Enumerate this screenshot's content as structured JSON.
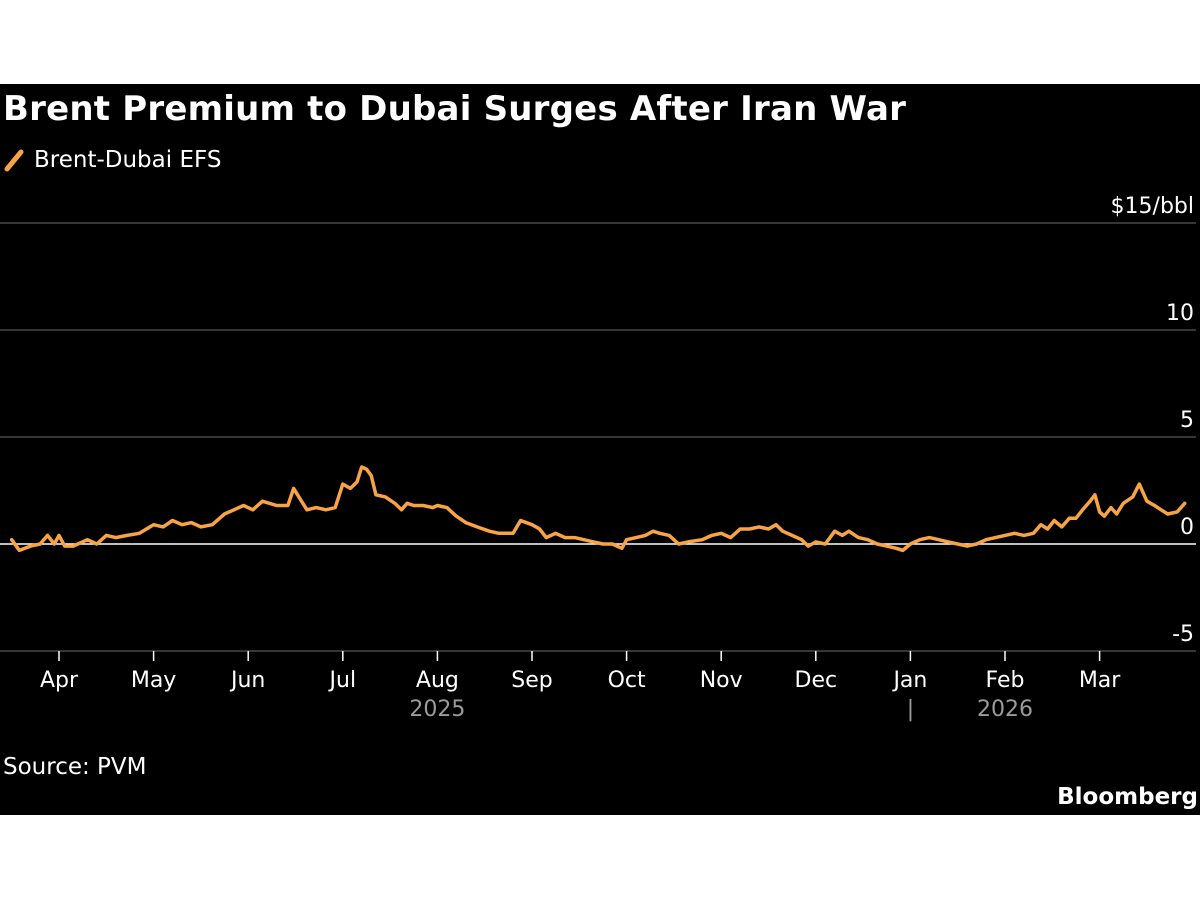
{
  "chart_data": {
    "type": "line",
    "title": "Brent Premium to Dubai Surges After Iran War",
    "legend": {
      "entries": [
        "Brent-Dubai EFS"
      ],
      "position": "top-left"
    },
    "y_axis": {
      "unit_label": "$15/bbl",
      "ticks": [
        {
          "value": 15,
          "label": "$15/bbl"
        },
        {
          "value": 10,
          "label": "10"
        },
        {
          "value": 5,
          "label": "5"
        },
        {
          "value": 0,
          "label": "0"
        },
        {
          "value": -5,
          "label": "-5"
        }
      ],
      "ylim": [
        -5,
        15
      ],
      "grid": true
    },
    "x_axis": {
      "months": [
        "Apr",
        "May",
        "Jun",
        "Jul",
        "Aug",
        "Sep",
        "Oct",
        "Nov",
        "Dec",
        "Jan",
        "Feb",
        "Mar"
      ],
      "years": [
        {
          "label": "2025",
          "center_month_index": 4
        },
        {
          "label": "2026",
          "center_month_index": 10
        }
      ],
      "year_divider_month_index": 9,
      "year_divider_label": "|",
      "xlim": [
        -0.5,
        11.85
      ]
    },
    "series": [
      {
        "name": "Brent-Dubai EFS",
        "color": "#f8a445",
        "points": [
          [
            -0.5,
            0.2
          ],
          [
            -0.42,
            -0.3
          ],
          [
            -0.3,
            -0.1
          ],
          [
            -0.2,
            0.0
          ],
          [
            -0.12,
            0.4
          ],
          [
            -0.05,
            0.0
          ],
          [
            0.0,
            0.4
          ],
          [
            0.06,
            -0.1
          ],
          [
            0.15,
            -0.1
          ],
          [
            0.3,
            0.2
          ],
          [
            0.4,
            0.0
          ],
          [
            0.5,
            0.4
          ],
          [
            0.6,
            0.3
          ],
          [
            0.72,
            0.4
          ],
          [
            0.85,
            0.5
          ],
          [
            1.0,
            0.9
          ],
          [
            1.1,
            0.8
          ],
          [
            1.2,
            1.1
          ],
          [
            1.3,
            0.9
          ],
          [
            1.4,
            1.0
          ],
          [
            1.5,
            0.8
          ],
          [
            1.62,
            0.9
          ],
          [
            1.75,
            1.4
          ],
          [
            1.85,
            1.6
          ],
          [
            1.95,
            1.8
          ],
          [
            2.05,
            1.6
          ],
          [
            2.15,
            2.0
          ],
          [
            2.3,
            1.8
          ],
          [
            2.42,
            1.8
          ],
          [
            2.48,
            2.6
          ],
          [
            2.55,
            2.1
          ],
          [
            2.62,
            1.6
          ],
          [
            2.72,
            1.7
          ],
          [
            2.82,
            1.6
          ],
          [
            2.92,
            1.7
          ],
          [
            3.0,
            2.8
          ],
          [
            3.08,
            2.6
          ],
          [
            3.15,
            2.9
          ],
          [
            3.2,
            3.6
          ],
          [
            3.25,
            3.5
          ],
          [
            3.3,
            3.2
          ],
          [
            3.35,
            2.3
          ],
          [
            3.45,
            2.2
          ],
          [
            3.55,
            1.9
          ],
          [
            3.62,
            1.6
          ],
          [
            3.68,
            1.9
          ],
          [
            3.75,
            1.8
          ],
          [
            3.85,
            1.8
          ],
          [
            3.95,
            1.7
          ],
          [
            4.0,
            1.8
          ],
          [
            4.1,
            1.7
          ],
          [
            4.2,
            1.3
          ],
          [
            4.3,
            1.0
          ],
          [
            4.42,
            0.8
          ],
          [
            4.55,
            0.6
          ],
          [
            4.65,
            0.5
          ],
          [
            4.72,
            0.5
          ],
          [
            4.8,
            0.5
          ],
          [
            4.88,
            1.1
          ],
          [
            5.0,
            0.9
          ],
          [
            5.08,
            0.7
          ],
          [
            5.15,
            0.3
          ],
          [
            5.25,
            0.5
          ],
          [
            5.35,
            0.3
          ],
          [
            5.45,
            0.3
          ],
          [
            5.55,
            0.2
          ],
          [
            5.65,
            0.1
          ],
          [
            5.75,
            0.0
          ],
          [
            5.85,
            0.0
          ],
          [
            5.95,
            -0.2
          ],
          [
            6.0,
            0.2
          ],
          [
            6.1,
            0.3
          ],
          [
            6.2,
            0.4
          ],
          [
            6.28,
            0.6
          ],
          [
            6.35,
            0.5
          ],
          [
            6.45,
            0.4
          ],
          [
            6.55,
            0.0
          ],
          [
            6.65,
            0.1
          ],
          [
            6.8,
            0.2
          ],
          [
            6.9,
            0.4
          ],
          [
            7.0,
            0.5
          ],
          [
            7.1,
            0.3
          ],
          [
            7.2,
            0.7
          ],
          [
            7.3,
            0.7
          ],
          [
            7.4,
            0.8
          ],
          [
            7.5,
            0.7
          ],
          [
            7.58,
            0.9
          ],
          [
            7.65,
            0.6
          ],
          [
            7.75,
            0.4
          ],
          [
            7.85,
            0.2
          ],
          [
            7.92,
            -0.1
          ],
          [
            8.0,
            0.1
          ],
          [
            8.1,
            0.0
          ],
          [
            8.2,
            0.6
          ],
          [
            8.28,
            0.4
          ],
          [
            8.35,
            0.6
          ],
          [
            8.45,
            0.3
          ],
          [
            8.55,
            0.2
          ],
          [
            8.65,
            0.0
          ],
          [
            8.75,
            -0.1
          ],
          [
            8.85,
            -0.2
          ],
          [
            8.92,
            -0.3
          ],
          [
            9.0,
            0.0
          ],
          [
            9.1,
            0.2
          ],
          [
            9.2,
            0.3
          ],
          [
            9.3,
            0.2
          ],
          [
            9.4,
            0.1
          ],
          [
            9.5,
            0.0
          ],
          [
            9.6,
            -0.1
          ],
          [
            9.7,
            0.0
          ],
          [
            9.8,
            0.2
          ],
          [
            9.9,
            0.3
          ],
          [
            10.0,
            0.4
          ],
          [
            10.1,
            0.5
          ],
          [
            10.2,
            0.4
          ],
          [
            10.3,
            0.5
          ],
          [
            10.38,
            0.9
          ],
          [
            10.45,
            0.7
          ],
          [
            10.52,
            1.1
          ],
          [
            10.6,
            0.8
          ],
          [
            10.68,
            1.2
          ],
          [
            10.75,
            1.2
          ],
          [
            10.82,
            1.6
          ],
          [
            10.9,
            2.0
          ],
          [
            10.95,
            2.3
          ],
          [
            11.0,
            1.5
          ],
          [
            11.05,
            1.3
          ],
          [
            11.12,
            1.7
          ],
          [
            11.18,
            1.4
          ],
          [
            11.25,
            1.9
          ],
          [
            11.35,
            2.2
          ],
          [
            11.42,
            2.8
          ],
          [
            11.5,
            2.0
          ],
          [
            11.58,
            1.8
          ],
          [
            11.65,
            1.6
          ],
          [
            11.72,
            1.4
          ],
          [
            11.82,
            1.5
          ],
          [
            11.9,
            1.9
          ]
        ]
      }
    ]
  },
  "source": "Source: PVM",
  "brand": "Bloomberg"
}
